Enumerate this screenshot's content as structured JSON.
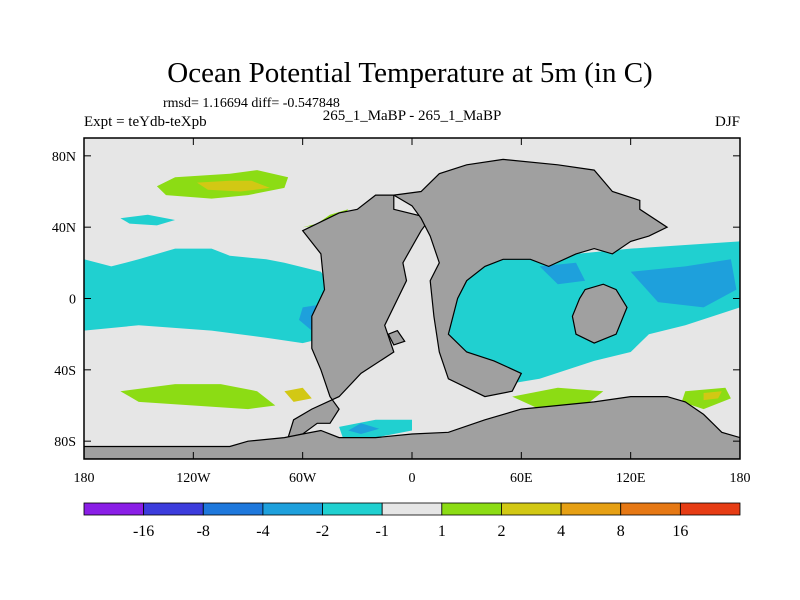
{
  "chart_data": {
    "type": "heatmap",
    "title": "Ocean Potential Temperature at 5m (in C)",
    "subtitle_stats": "rmsd= 1.16694 diff= -0.547848",
    "left_label": "Expt = teYdb-teXpb",
    "center_label": "265_1_MaBP - 265_1_MaBP",
    "right_label": "DJF",
    "xlim": [
      -180,
      180
    ],
    "ylim": [
      -90,
      90
    ],
    "x_ticks": [
      {
        "value": -180,
        "label": "180"
      },
      {
        "value": -120,
        "label": "120W"
      },
      {
        "value": -60,
        "label": "60W"
      },
      {
        "value": 0,
        "label": "0"
      },
      {
        "value": 60,
        "label": "60E"
      },
      {
        "value": 120,
        "label": "120E"
      },
      {
        "value": 180,
        "label": "180"
      }
    ],
    "y_ticks": [
      {
        "value": 80,
        "label": "80N"
      },
      {
        "value": 40,
        "label": "40N"
      },
      {
        "value": 0,
        "label": "0"
      },
      {
        "value": -40,
        "label": "40S"
      },
      {
        "value": -80,
        "label": "80S"
      }
    ],
    "colorbar": {
      "colors": [
        "#8a1ee6",
        "#3c3cdc",
        "#1e78dc",
        "#1ea0dc",
        "#20d0d0",
        "#e6e6e6",
        "#8cdc14",
        "#d2c814",
        "#e6a014",
        "#e67814",
        "#e63c14"
      ],
      "levels": [
        -16,
        -8,
        -4,
        -2,
        -1,
        1,
        2,
        4,
        8,
        16
      ],
      "labels": [
        "-16",
        "-8",
        "-4",
        "-2",
        "-1",
        "1",
        "2",
        "4",
        "8",
        "16"
      ]
    },
    "land_color": "#a0a0a0",
    "ocean_neutral_color": "#e6e6e6",
    "features": [
      {
        "name": "north-pacific-warm-band",
        "level": "1 to 2",
        "color": "#8cdc14",
        "outline": [
          [
            -130,
            68
          ],
          [
            -100,
            70
          ],
          [
            -85,
            72
          ],
          [
            -68,
            68
          ],
          [
            -70,
            62
          ],
          [
            -90,
            58
          ],
          [
            -110,
            56
          ],
          [
            -135,
            58
          ],
          [
            -140,
            63
          ]
        ]
      },
      {
        "name": "north-pacific-warm-core",
        "level": "2 to 4",
        "color": "#d2c814",
        "outline": [
          [
            -118,
            65
          ],
          [
            -100,
            66
          ],
          [
            -88,
            66
          ],
          [
            -78,
            62
          ],
          [
            -94,
            60
          ],
          [
            -112,
            61
          ]
        ]
      },
      {
        "name": "west-atlantic-warm-patch",
        "level": "1 to 2",
        "color": "#8cdc14",
        "outline": [
          [
            -60,
            40
          ],
          [
            -40,
            43
          ],
          [
            -35,
            50
          ],
          [
            -45,
            47
          ],
          [
            -52,
            42
          ]
        ]
      },
      {
        "name": "north-pacific-cool-streak",
        "level": "-2 to -1",
        "color": "#20d0d0",
        "outline": [
          [
            -160,
            45
          ],
          [
            -145,
            47
          ],
          [
            -130,
            44
          ],
          [
            -140,
            41
          ],
          [
            -155,
            42
          ]
        ]
      },
      {
        "name": "tropical-pacific-cool-band",
        "level": "-2 to -1",
        "color": "#20d0d0",
        "outline": [
          [
            -180,
            22
          ],
          [
            -165,
            18
          ],
          [
            -150,
            22
          ],
          [
            -130,
            28
          ],
          [
            -110,
            28
          ],
          [
            -100,
            24
          ],
          [
            -80,
            22
          ],
          [
            -70,
            20
          ],
          [
            -50,
            15
          ],
          [
            -40,
            0
          ],
          [
            -40,
            -20
          ],
          [
            -60,
            -25
          ],
          [
            -80,
            -22
          ],
          [
            -110,
            -18
          ],
          [
            -150,
            -15
          ],
          [
            -180,
            -18
          ]
        ]
      },
      {
        "name": "east-pacific-cool-core",
        "level": "-4 to -2",
        "color": "#1ea0dc",
        "outline": [
          [
            -60,
            -5
          ],
          [
            -48,
            -3
          ],
          [
            -45,
            -12
          ],
          [
            -55,
            -18
          ],
          [
            -62,
            -12
          ]
        ]
      },
      {
        "name": "south-pacific-warm-band",
        "level": "1 to 2",
        "color": "#8cdc14",
        "outline": [
          [
            -160,
            -52
          ],
          [
            -130,
            -48
          ],
          [
            -105,
            -48
          ],
          [
            -85,
            -52
          ],
          [
            -75,
            -60
          ],
          [
            -90,
            -62
          ],
          [
            -120,
            -60
          ],
          [
            -150,
            -58
          ]
        ]
      },
      {
        "name": "south-pacific-warm-core",
        "level": "2 to 4",
        "color": "#d2c814",
        "outline": [
          [
            -70,
            -52
          ],
          [
            -60,
            -50
          ],
          [
            -55,
            -56
          ],
          [
            -65,
            -58
          ]
        ]
      },
      {
        "name": "indian-ocean-cool-region",
        "level": "-2 to -1",
        "color": "#20d0d0",
        "outline": [
          [
            25,
            22
          ],
          [
            35,
            25
          ],
          [
            50,
            25
          ],
          [
            70,
            28
          ],
          [
            90,
            25
          ],
          [
            120,
            28
          ],
          [
            150,
            30
          ],
          [
            180,
            32
          ],
          [
            180,
            -5
          ],
          [
            150,
            -15
          ],
          [
            130,
            -20
          ],
          [
            120,
            -30
          ],
          [
            100,
            -35
          ],
          [
            70,
            -45
          ],
          [
            40,
            -50
          ],
          [
            25,
            -45
          ],
          [
            20,
            -25
          ],
          [
            22,
            -5
          ]
        ]
      },
      {
        "name": "west-pacific-cool-core",
        "level": "-4 to -2",
        "color": "#1ea0dc",
        "outline": [
          [
            120,
            15
          ],
          [
            150,
            18
          ],
          [
            175,
            22
          ],
          [
            178,
            5
          ],
          [
            160,
            -5
          ],
          [
            135,
            -2
          ]
        ]
      },
      {
        "name": "indian-ocean-cool-core",
        "level": "-4 to -2",
        "color": "#1ea0dc",
        "outline": [
          [
            70,
            18
          ],
          [
            90,
            20
          ],
          [
            95,
            10
          ],
          [
            80,
            8
          ]
        ]
      },
      {
        "name": "southern-indian-warm-patch",
        "level": "1 to 2",
        "color": "#8cdc14",
        "outline": [
          [
            55,
            -55
          ],
          [
            80,
            -50
          ],
          [
            105,
            -52
          ],
          [
            95,
            -60
          ],
          [
            70,
            -62
          ]
        ]
      },
      {
        "name": "south-west-pacific-warm-patch",
        "level": "1 to 2",
        "color": "#8cdc14",
        "outline": [
          [
            150,
            -52
          ],
          [
            172,
            -50
          ],
          [
            175,
            -56
          ],
          [
            160,
            -62
          ],
          [
            148,
            -58
          ]
        ]
      },
      {
        "name": "south-west-pacific-warm-core",
        "level": "2 to 4",
        "color": "#d2c814",
        "outline": [
          [
            160,
            -53
          ],
          [
            170,
            -52
          ],
          [
            168,
            -56
          ],
          [
            160,
            -57
          ]
        ]
      },
      {
        "name": "weddell-cool-patch",
        "level": "-2 to -1",
        "color": "#20d0d0",
        "outline": [
          [
            -40,
            -72
          ],
          [
            -20,
            -68
          ],
          [
            0,
            -68
          ],
          [
            0,
            -74
          ],
          [
            -20,
            -78
          ],
          [
            -38,
            -78
          ]
        ]
      },
      {
        "name": "weddell-cool-core",
        "level": "-4 to -2",
        "color": "#1ea0dc",
        "outline": [
          [
            -35,
            -74
          ],
          [
            -28,
            -70
          ],
          [
            -18,
            -73
          ],
          [
            -28,
            -76
          ]
        ]
      },
      {
        "name": "south-atlantic-cool-streak",
        "level": "-2 to -1",
        "color": "#20d0d0",
        "outline": [
          [
            -52,
            -62
          ],
          [
            -45,
            -60
          ],
          [
            -42,
            -66
          ],
          [
            -50,
            -68
          ]
        ]
      }
    ],
    "land": [
      {
        "name": "continent-west",
        "outline": [
          [
            -60,
            38
          ],
          [
            -40,
            48
          ],
          [
            -30,
            50
          ],
          [
            -20,
            58
          ],
          [
            -10,
            58
          ],
          [
            -10,
            50
          ],
          [
            10,
            45
          ],
          [
            5,
            38
          ],
          [
            -5,
            20
          ],
          [
            -3,
            10
          ],
          [
            -15,
            -15
          ],
          [
            -10,
            -30
          ],
          [
            -28,
            -42
          ],
          [
            -40,
            -55
          ],
          [
            -55,
            -62
          ],
          [
            -65,
            -68
          ],
          [
            -68,
            -78
          ],
          [
            -60,
            -76
          ],
          [
            -52,
            -70
          ],
          [
            -45,
            -70
          ],
          [
            -40,
            -62
          ],
          [
            -45,
            -55
          ],
          [
            -50,
            -40
          ],
          [
            -55,
            -28
          ],
          [
            -55,
            -10
          ],
          [
            -48,
            5
          ],
          [
            -50,
            25
          ]
        ]
      },
      {
        "name": "continent-east",
        "outline": [
          [
            -10,
            58
          ],
          [
            5,
            60
          ],
          [
            15,
            70
          ],
          [
            30,
            75
          ],
          [
            50,
            78
          ],
          [
            80,
            75
          ],
          [
            100,
            72
          ],
          [
            110,
            60
          ],
          [
            125,
            55
          ],
          [
            125,
            50
          ],
          [
            140,
            40
          ],
          [
            130,
            35
          ],
          [
            120,
            32
          ],
          [
            110,
            25
          ],
          [
            100,
            28
          ],
          [
            90,
            25
          ],
          [
            75,
            18
          ],
          [
            65,
            22
          ],
          [
            50,
            22
          ],
          [
            40,
            18
          ],
          [
            30,
            10
          ],
          [
            25,
            0
          ],
          [
            20,
            -20
          ],
          [
            30,
            -30
          ],
          [
            45,
            -35
          ],
          [
            60,
            -42
          ],
          [
            55,
            -52
          ],
          [
            40,
            -55
          ],
          [
            30,
            -50
          ],
          [
            20,
            -45
          ],
          [
            15,
            -30
          ],
          [
            12,
            -10
          ],
          [
            10,
            10
          ],
          [
            15,
            20
          ],
          [
            10,
            35
          ],
          [
            5,
            45
          ],
          [
            0,
            52
          ]
        ]
      },
      {
        "name": "antarctica",
        "outline": [
          [
            -180,
            -83
          ],
          [
            -100,
            -83
          ],
          [
            -90,
            -80
          ],
          [
            -70,
            -78
          ],
          [
            -60,
            -76
          ],
          [
            -50,
            -74
          ],
          [
            -40,
            -78
          ],
          [
            -20,
            -78
          ],
          [
            0,
            -76
          ],
          [
            20,
            -75
          ],
          [
            40,
            -68
          ],
          [
            60,
            -62
          ],
          [
            80,
            -60
          ],
          [
            100,
            -58
          ],
          [
            120,
            -55
          ],
          [
            140,
            -55
          ],
          [
            150,
            -58
          ],
          [
            160,
            -65
          ],
          [
            165,
            -70
          ],
          [
            170,
            -75
          ],
          [
            180,
            -78
          ],
          [
            180,
            -90
          ],
          [
            -180,
            -90
          ]
        ]
      },
      {
        "name": "island-southeast",
        "outline": [
          [
            95,
            5
          ],
          [
            105,
            8
          ],
          [
            112,
            5
          ],
          [
            118,
            -5
          ],
          [
            112,
            -20
          ],
          [
            100,
            -25
          ],
          [
            90,
            -20
          ],
          [
            88,
            -10
          ],
          [
            92,
            0
          ]
        ]
      },
      {
        "name": "island-small",
        "outline": [
          [
            -13,
            -20
          ],
          [
            -8,
            -18
          ],
          [
            -4,
            -24
          ],
          [
            -10,
            -26
          ]
        ]
      }
    ]
  }
}
